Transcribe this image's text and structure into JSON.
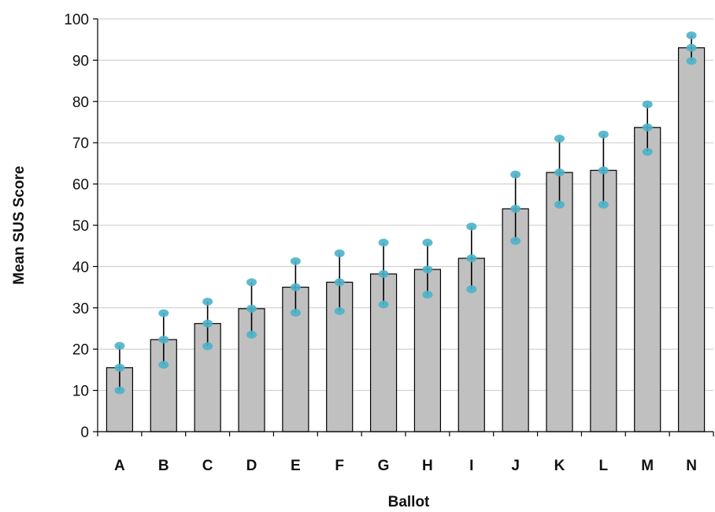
{
  "chart_data": {
    "type": "bar",
    "title": "",
    "xlabel": "Ballot",
    "ylabel": "Mean SUS Score",
    "ylim": [
      0,
      100
    ],
    "yticks": [
      0,
      10,
      20,
      30,
      40,
      50,
      60,
      70,
      80,
      90,
      100
    ],
    "grid": true,
    "legend": "none",
    "categories": [
      "A",
      "B",
      "C",
      "D",
      "E",
      "F",
      "G",
      "H",
      "I",
      "J",
      "K",
      "L",
      "M",
      "N"
    ],
    "values": [
      15.5,
      22.3,
      26.2,
      29.8,
      35.0,
      36.2,
      38.2,
      39.3,
      42.0,
      54.0,
      62.8,
      63.3,
      73.7,
      93.0
    ],
    "error_low": [
      10.0,
      16.2,
      20.7,
      23.5,
      28.8,
      29.2,
      30.8,
      33.2,
      34.5,
      46.2,
      55.0,
      55.0,
      67.8,
      89.8
    ],
    "error_high": [
      20.8,
      28.7,
      31.5,
      36.2,
      41.3,
      43.2,
      45.8,
      45.8,
      49.7,
      62.3,
      71.0,
      72.0,
      79.3,
      96.0
    ],
    "colors": {
      "bar_fill": "#c0c0c0",
      "bar_stroke": "#000000",
      "error_bar": "#000000",
      "error_marker": "#4bb3c9",
      "grid": "#c8c8c8",
      "axis": "#000000"
    }
  }
}
